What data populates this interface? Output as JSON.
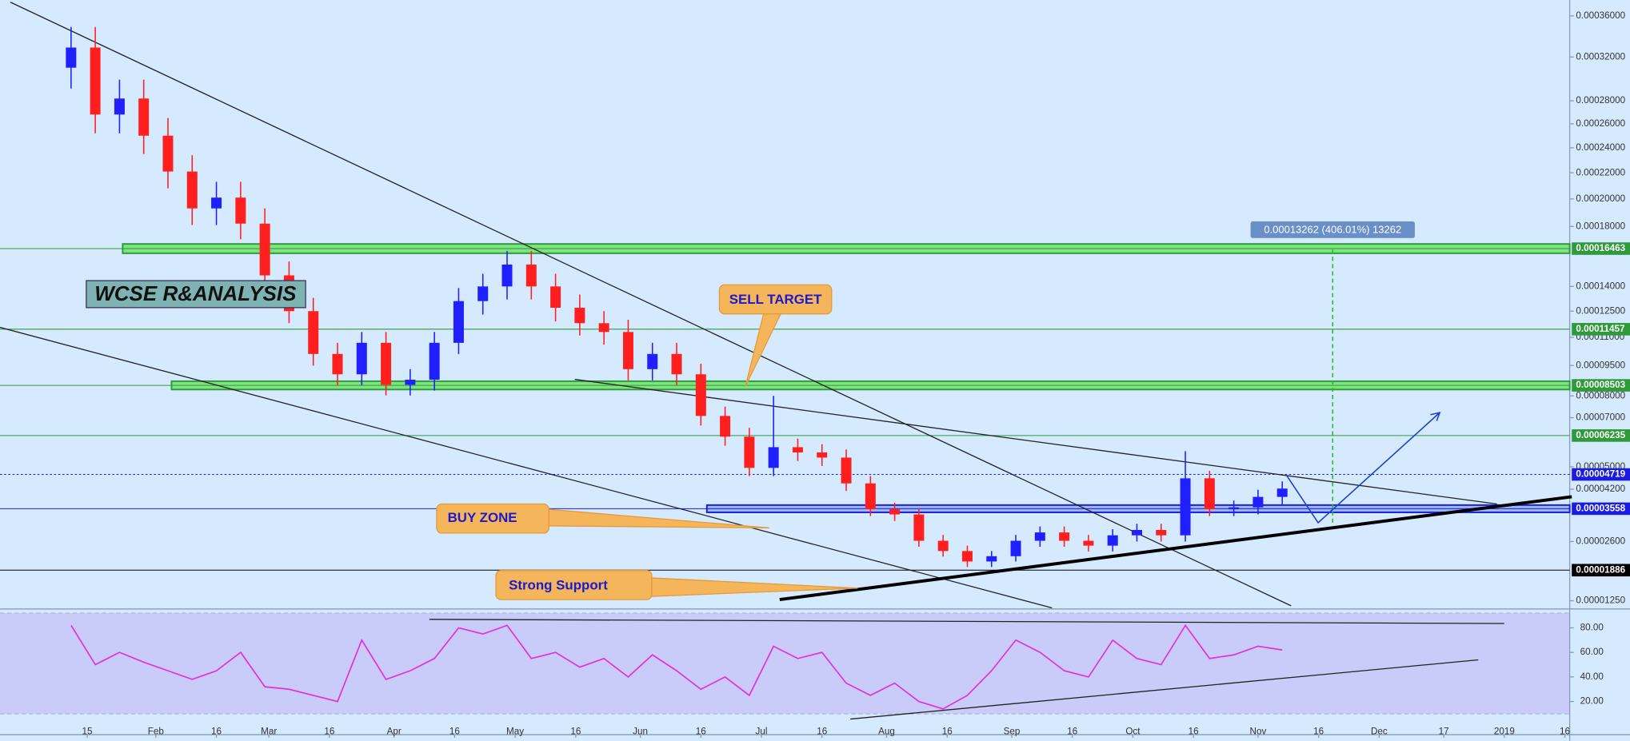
{
  "chart_data": {
    "type": "candlestick",
    "yscale": "sqrt",
    "ylim": [
      1.12e-05,
      0.000376
    ],
    "yticks": [
      {
        "value": 0.00036,
        "label": "0.00036000"
      },
      {
        "value": 0.00032,
        "label": "0.00032000"
      },
      {
        "value": 0.00028,
        "label": "0.00028000"
      },
      {
        "value": 0.00026,
        "label": "0.00026000"
      },
      {
        "value": 0.00024,
        "label": "0.00024000"
      },
      {
        "value": 0.00022,
        "label": "0.00022000"
      },
      {
        "value": 0.0002,
        "label": "0.00020000"
      },
      {
        "value": 0.00018,
        "label": "0.00018000"
      },
      {
        "value": 0.00014,
        "label": "0.00014000"
      },
      {
        "value": 0.000125,
        "label": "0.00012500"
      },
      {
        "value": 0.00011,
        "label": "0.00011000"
      },
      {
        "value": 9.5e-05,
        "label": "0.00009500"
      },
      {
        "value": 8e-05,
        "label": "0.00008000"
      },
      {
        "value": 7e-05,
        "label": "0.00007000"
      },
      {
        "value": 5e-05,
        "label": "0.00005000"
      },
      {
        "value": 4.2e-05,
        "label": "0.00004200"
      },
      {
        "value": 2.6e-05,
        "label": "0.00002600"
      },
      {
        "value": 1.25e-05,
        "label": "0.00001250"
      }
    ],
    "xlim": [
      -21.6,
      367.2
    ],
    "xticks": [
      {
        "value": 0,
        "label": "15"
      },
      {
        "value": 17,
        "label": "Feb"
      },
      {
        "value": 32,
        "label": "16"
      },
      {
        "value": 45,
        "label": "Mar"
      },
      {
        "value": 60,
        "label": "16"
      },
      {
        "value": 76,
        "label": "Apr"
      },
      {
        "value": 91,
        "label": "16"
      },
      {
        "value": 106,
        "label": "May"
      },
      {
        "value": 121,
        "label": "16"
      },
      {
        "value": 137,
        "label": "Jun"
      },
      {
        "value": 152,
        "label": "16"
      },
      {
        "value": 167,
        "label": "Jul"
      },
      {
        "value": 182,
        "label": "16"
      },
      {
        "value": 198,
        "label": "Aug"
      },
      {
        "value": 213,
        "label": "16"
      },
      {
        "value": 229,
        "label": "Sep"
      },
      {
        "value": 244,
        "label": "16"
      },
      {
        "value": 259,
        "label": "Oct"
      },
      {
        "value": 274,
        "label": "16"
      },
      {
        "value": 290,
        "label": "Nov"
      },
      {
        "value": 305,
        "label": "16"
      },
      {
        "value": 320,
        "label": "Dec"
      },
      {
        "value": 336,
        "label": "17"
      },
      {
        "value": 351,
        "label": "2019"
      },
      {
        "value": 366,
        "label": "16"
      }
    ],
    "x": [
      -4,
      2,
      8,
      14,
      20,
      26,
      32,
      38,
      44,
      50,
      56,
      62,
      68,
      74,
      80,
      86,
      92,
      98,
      104,
      110,
      116,
      122,
      128,
      134,
      140,
      146,
      152,
      158,
      164,
      170,
      176,
      182,
      188,
      194,
      200,
      206,
      212,
      218,
      224,
      230,
      236,
      242,
      248,
      254,
      260,
      266,
      272,
      278,
      284,
      290,
      296
    ],
    "open": [
      0.00031,
      0.000329,
      0.000268,
      0.000282,
      0.00025,
      0.000221,
      0.000193,
      0.000201,
      0.000182,
      0.000147,
      0.000125,
      0.000101,
      9.05e-05,
      0.000107,
      8.53e-05,
      8.78e-05,
      0.000107,
      0.000131,
      0.00014,
      0.000154,
      0.00014,
      0.000127,
      0.000118,
      0.000113,
      9.31e-05,
      0.000101,
      9.05e-05,
      7.08e-05,
      6.19e-05,
      4.96e-05,
      5.76e-05,
      5.55e-05,
      5.35e-05,
      4.4e-05,
      3.54e-05,
      3.38e-05,
      2.62e-05,
      2.35e-05,
      2.09e-05,
      2.22e-05,
      2.62e-05,
      2.85e-05,
      2.62e-05,
      2.49e-05,
      2.77e-05,
      2.92e-05,
      2.77e-05,
      4.58e-05,
      3.54e-05,
      3.6e-05,
      3.94e-05
    ],
    "high": [
      0.000349,
      0.000349,
      0.000299,
      0.000299,
      0.000265,
      0.000234,
      0.000213,
      0.000213,
      0.000193,
      0.000156,
      0.000133,
      0.000107,
      0.000113,
      0.000113,
      9.31e-05,
      0.000113,
      0.000139,
      0.000148,
      0.000163,
      0.000163,
      0.000148,
      0.000135,
      0.000125,
      0.00012,
      0.000107,
      0.000107,
      9.59e-05,
      7.5e-05,
      6.56e-05,
      8e-05,
      6.11e-05,
      5.88e-05,
      5.67e-05,
      4.66e-05,
      3.75e-05,
      3.58e-05,
      2.78e-05,
      2.49e-05,
      2.35e-05,
      2.78e-05,
      3.02e-05,
      3.02e-05,
      2.78e-05,
      2.94e-05,
      3.1e-05,
      3.1e-05,
      5.6e-05,
      4.85e-05,
      3.82e-05,
      4.18e-05,
      4.47e-05
    ],
    "low": [
      0.000291,
      0.000252,
      0.000252,
      0.000235,
      0.000208,
      0.000181,
      0.000181,
      0.000171,
      0.000138,
      0.000118,
      9.49e-05,
      8.51e-05,
      8.51e-05,
      8.02e-05,
      8.02e-05,
      8.25e-05,
      0.000101,
      0.000123,
      0.000132,
      0.000132,
      0.000119,
      0.000111,
      0.000106,
      8.75e-05,
      8.75e-05,
      8.51e-05,
      6.66e-05,
      5.82e-05,
      4.66e-05,
      4.66e-05,
      5.22e-05,
      5.03e-05,
      4.14e-05,
      3.33e-05,
      3.18e-05,
      2.46e-05,
      2.21e-05,
      1.96e-05,
      1.96e-05,
      2.09e-05,
      2.46e-05,
      2.46e-05,
      2.34e-05,
      2.34e-05,
      2.6e-05,
      2.6e-05,
      2.6e-05,
      3.33e-05,
      3.33e-05,
      3.38e-05,
      3.7e-05
    ],
    "close": [
      0.000329,
      0.000268,
      0.000282,
      0.00025,
      0.000221,
      0.000193,
      0.000201,
      0.000182,
      0.000147,
      0.000125,
      0.000101,
      9.05e-05,
      0.000107,
      8.53e-05,
      8.78e-05,
      0.000107,
      0.000131,
      0.00014,
      0.000154,
      0.00014,
      0.000127,
      0.000118,
      0.000113,
      9.31e-05,
      0.000101,
      9.05e-05,
      7.08e-05,
      6.19e-05,
      4.96e-05,
      5.76e-05,
      5.55e-05,
      5.35e-05,
      4.4e-05,
      3.54e-05,
      3.38e-05,
      2.62e-05,
      2.35e-05,
      2.09e-05,
      2.22e-05,
      2.62e-05,
      2.85e-05,
      2.62e-05,
      2.49e-05,
      2.77e-05,
      2.92e-05,
      2.77e-05,
      4.58e-05,
      3.54e-05,
      3.6e-05,
      3.94e-05,
      4.22e-05
    ],
    "up_color": "#1f1fff",
    "down_color": "#ff1f1f",
    "levels": [
      {
        "value": 0.00016463,
        "label": "0.00016463",
        "color": "#2e9a3a"
      },
      {
        "value": 0.00011457,
        "label": "0.00011457",
        "color": "#2e9a3a"
      },
      {
        "value": 8.503e-05,
        "label": "0.00008503",
        "color": "#2e9a3a"
      },
      {
        "value": 6.235e-05,
        "label": "0.00006235",
        "color": "#2e9a3a"
      },
      {
        "value": 4.719e-05,
        "label": "0.00004719",
        "color": "#1c1ce0"
      },
      {
        "value": 3.558e-05,
        "label": "0.00003558",
        "color": "#1c1ce0"
      },
      {
        "value": 1.886e-05,
        "label": "0.00001886",
        "color": "#000000"
      }
    ],
    "indicator": {
      "type": "line",
      "color": "#e22fe2",
      "ylim": [
        -7,
        92
      ],
      "yticks": [
        {
          "value": 80,
          "label": "80.00"
        },
        {
          "value": 60,
          "label": "60.00"
        },
        {
          "value": 40,
          "label": "40.00"
        },
        {
          "value": 20,
          "label": "20.00"
        }
      ],
      "values": [
        82,
        50,
        60,
        52,
        45,
        38,
        45,
        60,
        32,
        30,
        25,
        20,
        70,
        38,
        45,
        55,
        80,
        75,
        82,
        55,
        60,
        48,
        55,
        40,
        58,
        45,
        30,
        40,
        25,
        65,
        55,
        60,
        35,
        25,
        35,
        20,
        14,
        25,
        45,
        70,
        60,
        45,
        40,
        70,
        55,
        50,
        82,
        55,
        58,
        65,
        62
      ]
    },
    "annotations": [
      "WCSE R&ANALYSIS",
      "SELL TARGET",
      "BUY ZONE",
      "Strong Support",
      "0.00013262 (406.01%) 13262"
    ]
  }
}
